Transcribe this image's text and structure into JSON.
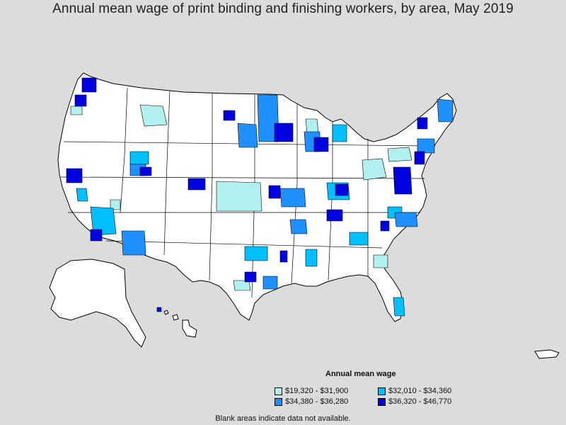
{
  "title": "Annual mean wage of print binding and finishing workers, by area, May 2019",
  "legend": {
    "title": "Annual mean wage",
    "items": [
      {
        "label": "$19,320 - $31,900",
        "color": "#b2f0f0"
      },
      {
        "label": "$32,010 - $34,360",
        "color": "#00bfff"
      },
      {
        "label": "$34,380 - $36,280",
        "color": "#1e90ff"
      },
      {
        "label": "$36,320 - $46,770",
        "color": "#0000e0"
      }
    ]
  },
  "footnote": "Blank areas indicate data not available.",
  "colors": {
    "background": "#dcdcdc",
    "land": "#ffffff",
    "border": "#000000"
  }
}
